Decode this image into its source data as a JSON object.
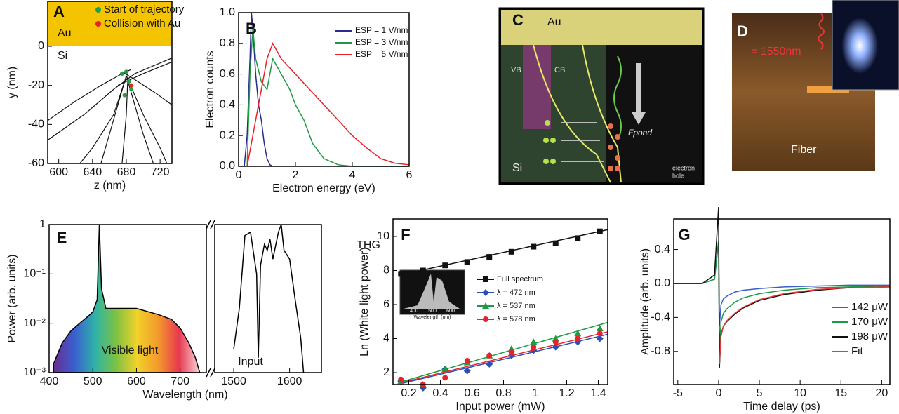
{
  "chart_data": [
    {
      "type": "line",
      "label": "A",
      "xlabel": "z (nm)",
      "ylabel": "y (nm)",
      "annotations": [
        "Au",
        "Si"
      ],
      "xlim": [
        587,
        734
      ],
      "xticks": [
        600,
        640,
        680,
        720
      ],
      "ylim": [
        -60,
        23
      ],
      "yticks": [
        -60,
        -40,
        -20,
        0
      ],
      "band_color": "#f5c400",
      "trajectories": [
        {
          "x": [
            587,
            620,
            650,
            675,
            685
          ],
          "values": [
            -38,
            -28,
            -20,
            -14,
            -12
          ]
        },
        {
          "x": [
            587,
            630,
            665,
            690,
            734
          ],
          "values": [
            -48,
            -35,
            -22,
            -14,
            -6
          ]
        },
        {
          "x": [
            680,
            670,
            660,
            650
          ],
          "values": [
            -15,
            -30,
            -45,
            -60
          ]
        },
        {
          "x": [
            680,
            690,
            700,
            712
          ],
          "values": [
            -15,
            -30,
            -45,
            -60
          ]
        },
        {
          "x": [
            678,
            665,
            640,
            625
          ],
          "values": [
            -18,
            -35,
            -52,
            -60
          ]
        },
        {
          "x": [
            685,
            700,
            720,
            728
          ],
          "values": [
            -20,
            -35,
            -52,
            -60
          ]
        },
        {
          "x": [
            682,
            680,
            677,
            675
          ],
          "values": [
            -14,
            -35,
            -50,
            -60
          ]
        },
        {
          "x": [
            675,
            690,
            715,
            734
          ],
          "values": [
            -13,
            -17,
            -24,
            -30
          ]
        },
        {
          "x": [
            670,
            700,
            734
          ],
          "values": [
            -20,
            -14,
            -8
          ]
        }
      ],
      "series": [
        {
          "name": "Start of trajectory",
          "color": "#22a046",
          "marker": "circle",
          "x": [
            675,
            680,
            683,
            686,
            678
          ],
          "values": [
            -14,
            -13,
            -18,
            -22,
            -25
          ]
        },
        {
          "name": "Collision with Au",
          "color": "#e8222a",
          "marker": "circle",
          "x": [
            686
          ],
          "values": [
            -20
          ]
        }
      ]
    },
    {
      "type": "line",
      "label": "B",
      "xlabel": "Electron energy (eV)",
      "ylabel": "Electron counts",
      "xlim": [
        0,
        6
      ],
      "xticks": [
        0,
        2,
        4,
        6
      ],
      "ylim": [
        0,
        1
      ],
      "yticks": [
        {
          "value": 0,
          "label": "0.0"
        },
        0.2,
        0.4,
        0.6,
        0.8,
        {
          "value": 1,
          "label": "1.0"
        }
      ],
      "series": [
        {
          "name": "ESP = 1 V/nm",
          "color": "#2a2a8c",
          "x": [
            0.2,
            0.3,
            0.4,
            0.45,
            0.5,
            0.6,
            0.7,
            0.8,
            0.9,
            1.0,
            1.1,
            1.2
          ],
          "values": [
            0,
            0.2,
            0.7,
            1.0,
            0.9,
            0.6,
            0.4,
            0.3,
            0.15,
            0.05,
            0.01,
            0
          ]
        },
        {
          "name": "ESP = 3 V/nm",
          "color": "#1f9a44",
          "x": [
            0.3,
            0.4,
            0.5,
            0.6,
            0.8,
            1.0,
            1.2,
            1.5,
            1.8,
            2.0,
            2.3,
            2.6,
            3.0,
            3.5,
            4.0,
            6.0
          ],
          "values": [
            0,
            0.6,
            0.9,
            0.7,
            0.55,
            0.5,
            0.7,
            0.6,
            0.5,
            0.4,
            0.3,
            0.15,
            0.05,
            0.01,
            0,
            0
          ]
        },
        {
          "name": "ESP = 5 V/nm",
          "color": "#e8222a",
          "x": [
            0.3,
            0.5,
            0.8,
            1.0,
            1.2,
            1.5,
            2.0,
            2.5,
            3.0,
            3.5,
            4.0,
            4.5,
            5.0,
            5.5,
            6.0
          ],
          "values": [
            0,
            0.2,
            0.5,
            0.7,
            0.8,
            0.7,
            0.6,
            0.5,
            0.4,
            0.3,
            0.2,
            0.12,
            0.05,
            0.02,
            0.01
          ]
        }
      ]
    },
    {
      "type": "line",
      "label": "E",
      "xlabel": "Wavelength (nm)",
      "ylabel": "Power (arb. units)",
      "annotations": [
        "THG",
        "Visible light",
        "Input"
      ],
      "log_y": true,
      "ylim": [
        0.001,
        1
      ],
      "yticks": [
        {
          "value": 0.001,
          "label": "10⁻³"
        },
        {
          "value": 0.01,
          "label": "10⁻²"
        },
        {
          "value": 0.1,
          "label": "10⁻¹"
        },
        1
      ],
      "segments": [
        {
          "xlim": [
            400,
            760
          ],
          "xticks": [
            400,
            500,
            600,
            700
          ]
        },
        {
          "xlim": [
            1466,
            1657
          ],
          "xticks": [
            1500,
            1600
          ]
        }
      ],
      "series": [
        {
          "color": "#000000",
          "segment": 0,
          "gradient": [
            "#6a2c91",
            "#3a5fd0",
            "#2fb3a8",
            "#7cc242",
            "#f2d22a",
            "#f39a2c",
            "#e8384f",
            "#f9d3d8"
          ],
          "x": [
            410,
            430,
            450,
            470,
            490,
            500,
            510,
            515,
            520,
            530,
            550,
            600,
            650,
            680,
            700,
            720,
            735,
            745
          ],
          "values": [
            0.0015,
            0.004,
            0.007,
            0.01,
            0.014,
            0.017,
            0.03,
            1.0,
            0.05,
            0.02,
            0.02,
            0.02,
            0.015,
            0.012,
            0.008,
            0.004,
            0.002,
            0.001
          ]
        },
        {
          "color": "#000000",
          "segment": 1,
          "x": [
            1500,
            1510,
            1520,
            1530,
            1537,
            1541,
            1544,
            1548,
            1555,
            1560,
            1565,
            1570,
            1580,
            1585,
            1590,
            1600,
            1610,
            1620,
            1625
          ],
          "values": [
            0.003,
            0.02,
            0.6,
            0.7,
            0.2,
            0.1,
            0.002,
            0.15,
            0.4,
            0.3,
            0.5,
            0.2,
            0.7,
            1.0,
            0.3,
            0.2,
            0.03,
            0.005,
            0.001
          ]
        }
      ]
    },
    {
      "type": "scatter",
      "label": "F",
      "xlabel": "Input power (mW)",
      "ylabel": "Ln (White light power)",
      "inset": {
        "ticks": [
          "400",
          "500",
          "600"
        ],
        "xlabel": "Wavelength (nm)"
      },
      "xlim": [
        0.1,
        1.46
      ],
      "xticks": [
        0.2,
        0.4,
        0.6,
        0.8,
        1,
        1.2,
        1.4
      ],
      "ylim": [
        1.3,
        11.03
      ],
      "yticks": [
        2,
        4,
        6,
        8,
        10
      ],
      "series": [
        {
          "name": "Full spectrum",
          "color": "#111111",
          "marker": "square",
          "x": [
            0.15,
            0.29,
            0.43,
            0.57,
            0.71,
            0.85,
            0.99,
            1.13,
            1.27,
            1.41
          ],
          "values": [
            7.8,
            8.0,
            8.3,
            8.5,
            8.8,
            9.1,
            9.4,
            9.6,
            9.9,
            10.3
          ],
          "fit": {
            "x": [
              0.15,
              1.46
            ],
            "values": [
              7.75,
              10.4
            ]
          }
        },
        {
          "name": "λ = 472 nm",
          "color": "#2c4fb5",
          "marker": "diamond",
          "x": [
            0.15,
            0.29,
            0.43,
            0.57,
            0.71,
            0.85,
            0.99,
            1.13,
            1.27,
            1.41
          ],
          "values": [
            1.5,
            1.1,
            2.2,
            2.1,
            2.5,
            3.0,
            3.3,
            3.5,
            3.8,
            4.0
          ],
          "fit": {
            "x": [
              0.15,
              1.46
            ],
            "values": [
              1.35,
              4.25
            ]
          }
        },
        {
          "name": "λ = 537 nm",
          "color": "#1f9a44",
          "marker": "triangle",
          "x": [
            0.15,
            0.29,
            0.43,
            0.57,
            0.71,
            0.85,
            0.99,
            1.13,
            1.27,
            1.41
          ],
          "values": [
            1.5,
            1.3,
            2.2,
            2.6,
            3.0,
            3.4,
            3.8,
            4.0,
            4.3,
            4.6
          ],
          "fit": {
            "x": [
              0.15,
              1.46
            ],
            "values": [
              1.45,
              4.95
            ]
          }
        },
        {
          "name": "λ = 578 nm",
          "color": "#e8222a",
          "marker": "circle",
          "x": [
            0.15,
            0.29,
            0.43,
            0.57,
            0.71,
            0.85,
            0.99,
            1.13,
            1.27,
            1.41
          ],
          "values": [
            1.6,
            1.3,
            1.7,
            2.7,
            3.0,
            3.2,
            3.5,
            3.8,
            4.0,
            4.3
          ],
          "fit": {
            "x": [
              0.15,
              1.46
            ],
            "values": [
              1.4,
              4.4
            ]
          }
        }
      ]
    },
    {
      "type": "line",
      "label": "G",
      "xlabel": "Time delay (ps)",
      "ylabel": "Amplitude (arb. units)",
      "xlim": [
        -5.5,
        21
      ],
      "xticks": [
        -5,
        0,
        5,
        10,
        15,
        20
      ],
      "ylim": [
        -1.19,
        0.76
      ],
      "yticks": [
        -0.8,
        -0.4,
        {
          "value": 0,
          "label": "0.0"
        },
        0.4
      ],
      "series": [
        {
          "name": "142 μW",
          "color": "#3a5fc8",
          "x": [
            -5.5,
            -2,
            -0.5,
            0,
            0.1,
            0.3,
            0.6,
            1,
            2,
            3,
            5,
            8,
            12,
            16,
            21
          ],
          "values": [
            0,
            0,
            0.05,
            0.5,
            -0.5,
            -0.25,
            -0.18,
            -0.15,
            -0.1,
            -0.08,
            -0.06,
            -0.04,
            -0.03,
            -0.02,
            -0.02
          ]
        },
        {
          "name": "170 μW",
          "color": "#1f9a44",
          "x": [
            -5.5,
            -2,
            -0.5,
            0,
            0.1,
            0.3,
            0.6,
            1,
            2,
            3,
            5,
            8,
            12,
            16,
            21
          ],
          "values": [
            0,
            0,
            0.05,
            0.5,
            -0.8,
            -0.45,
            -0.35,
            -0.3,
            -0.22,
            -0.17,
            -0.12,
            -0.08,
            -0.05,
            -0.04,
            -0.03
          ]
        },
        {
          "name": "198 μW",
          "color": "#111111",
          "x": [
            -5.5,
            -2,
            -0.5,
            0,
            0.1,
            0.3,
            0.6,
            1,
            2,
            3,
            5,
            8,
            12,
            16,
            21
          ],
          "values": [
            0,
            0,
            0.1,
            0.9,
            -1.0,
            -0.6,
            -0.5,
            -0.45,
            -0.36,
            -0.29,
            -0.2,
            -0.13,
            -0.08,
            -0.05,
            -0.04
          ]
        },
        {
          "name": "Fit",
          "color": "#e8383a",
          "x": [
            0.1,
            0.3,
            0.6,
            1,
            2,
            3,
            5,
            8,
            12,
            16,
            21
          ],
          "values": [
            -0.95,
            -0.62,
            -0.5,
            -0.44,
            -0.35,
            -0.28,
            -0.19,
            -0.12,
            -0.07,
            -0.05,
            -0.04
          ]
        }
      ]
    }
  ],
  "images": {
    "C": {
      "label": "C",
      "texts": [
        "Au",
        "VB",
        "CB",
        "Si",
        "Fpond",
        "electron",
        "hole"
      ]
    },
    "D": {
      "label": "D",
      "texts": [
        "= 1550nm",
        "Fiber"
      ]
    }
  }
}
